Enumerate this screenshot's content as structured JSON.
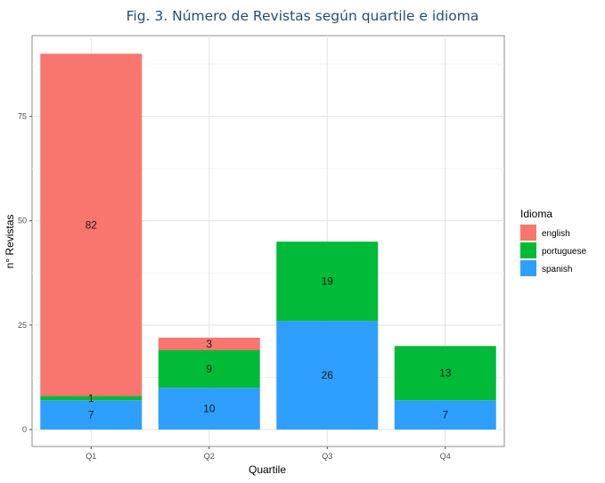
{
  "chart_data": {
    "type": "bar",
    "stacked": true,
    "title": "Fig.  3. Número de Revistas según quartile e idioma",
    "xlabel": "Quartile",
    "ylabel": "n° Revistas",
    "categories": [
      "Q1",
      "Q2",
      "Q3",
      "Q4"
    ],
    "series": [
      {
        "name": "spanish",
        "values": [
          7,
          10,
          26,
          7
        ],
        "color": "#2E9FFE"
      },
      {
        "name": "portuguese",
        "values": [
          1,
          9,
          19,
          13
        ],
        "color": "#00BA38"
      },
      {
        "name": "english",
        "values": [
          82,
          3,
          0,
          0
        ],
        "color": "#F8766D"
      }
    ],
    "ylim": [
      0,
      95
    ],
    "yticks": [
      0,
      25,
      50,
      75
    ],
    "legend": {
      "title": "Idioma",
      "position": "right",
      "order": [
        "english",
        "portuguese",
        "spanish"
      ]
    },
    "grid": true
  }
}
